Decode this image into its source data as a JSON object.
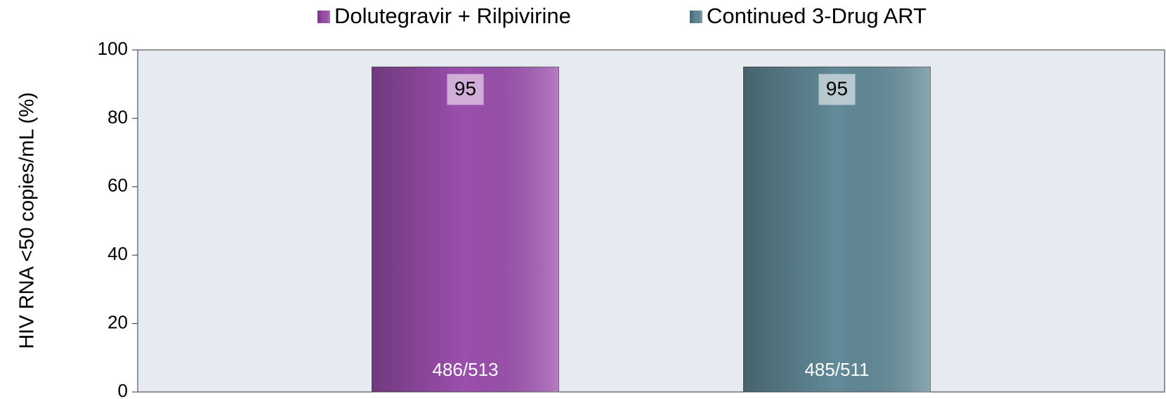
{
  "chart_data": {
    "type": "bar",
    "y_label": "HIV RNA <50 copies/mL (%)",
    "categories": [
      null
    ],
    "series": [
      {
        "name": "Dolutegravir + Rilpivirine",
        "color": "#9c4fae",
        "values": [
          95
        ],
        "counts": [
          "486/513"
        ]
      },
      {
        "name": "Continued 3-Drug ART",
        "color": "#628a98",
        "values": [
          95
        ],
        "counts": [
          "485/511"
        ]
      }
    ],
    "ylim": [
      0,
      100
    ],
    "yticks": [
      0,
      20,
      40,
      60,
      80,
      100
    ],
    "grid": false
  }
}
